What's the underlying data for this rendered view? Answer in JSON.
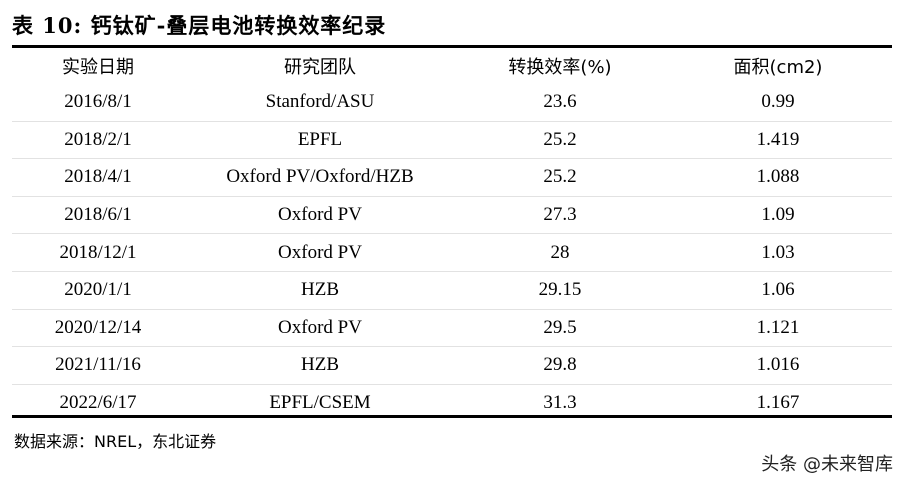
{
  "caption": "表 10: 钙钛矿-叠层电池转换效率纪录",
  "headers": [
    "实验日期",
    "研究团队",
    "转换效率(%)",
    "面积(cm2)"
  ],
  "rows": [
    [
      "2016/8/1",
      "Stanford/ASU",
      "23.6",
      "0.99"
    ],
    [
      "2018/2/1",
      "EPFL",
      "25.2",
      "1.419"
    ],
    [
      "2018/4/1",
      "Oxford PV/Oxford/HZB",
      "25.2",
      "1.088"
    ],
    [
      "2018/6/1",
      "Oxford PV",
      "27.3",
      "1.09"
    ],
    [
      "2018/12/1",
      "Oxford PV",
      "28",
      "1.03"
    ],
    [
      "2020/1/1",
      "HZB",
      "29.15",
      "1.06"
    ],
    [
      "2020/12/14",
      "Oxford PV",
      "29.5",
      "1.121"
    ],
    [
      "2021/11/16",
      "HZB",
      "29.8",
      "1.016"
    ],
    [
      "2022/6/17",
      "EPFL/CSEM",
      "31.3",
      "1.167"
    ]
  ],
  "source": "数据来源：NREL，东北证券",
  "watermark": "头条 @未来智库"
}
